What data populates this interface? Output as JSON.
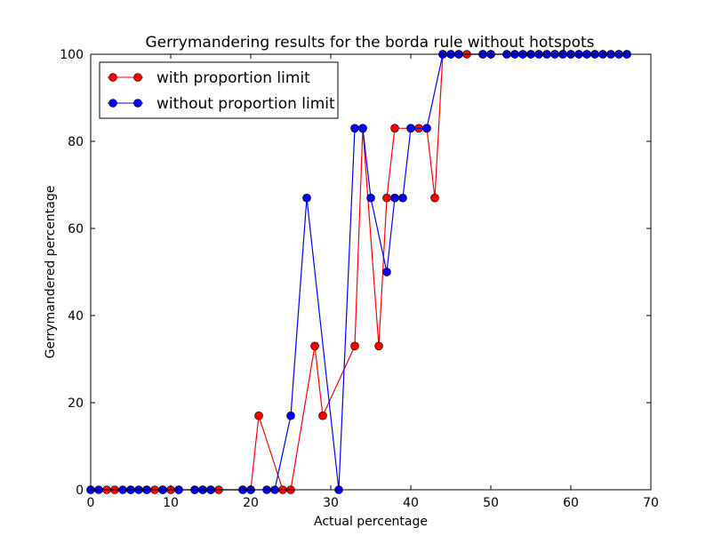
{
  "chart_data": {
    "type": "line",
    "title": "Gerrymandering results for the borda rule without hotspots",
    "xlabel": "Actual percentage",
    "ylabel": "Gerrymandered percentage",
    "xlim": [
      0,
      70
    ],
    "ylim": [
      0,
      100
    ],
    "xticks": [
      0,
      10,
      20,
      30,
      40,
      50,
      60,
      70
    ],
    "yticks": [
      0,
      20,
      40,
      60,
      80,
      100
    ],
    "legend_position": "top-left",
    "grid": false,
    "series": [
      {
        "name": "with proportion limit",
        "color": "#ff0000",
        "x": [
          0,
          2,
          3,
          5,
          7,
          8,
          9,
          10,
          11,
          13,
          14,
          15,
          16,
          19,
          20,
          21,
          24,
          25,
          28,
          29,
          33,
          34,
          36,
          37,
          38,
          40,
          41,
          42,
          43,
          44,
          45,
          46,
          47,
          49,
          50,
          52,
          53,
          54,
          55,
          56,
          57,
          58,
          59,
          60,
          61,
          62,
          63,
          64,
          65,
          66,
          67
        ],
        "y": [
          0,
          0,
          0,
          0,
          0,
          0,
          0,
          0,
          0,
          0,
          0,
          0,
          0,
          0,
          0,
          17,
          0,
          0,
          33,
          17,
          33,
          83,
          33,
          67,
          83,
          83,
          83,
          83,
          67,
          100,
          100,
          100,
          100,
          100,
          100,
          100,
          100,
          100,
          100,
          100,
          100,
          100,
          100,
          100,
          100,
          100,
          100,
          100,
          100,
          100,
          100
        ]
      },
      {
        "name": "without proportion limit",
        "color": "#0000ff",
        "x": [
          0,
          1,
          4,
          5,
          6,
          7,
          9,
          11,
          13,
          14,
          15,
          19,
          20,
          22,
          23,
          25,
          27,
          31,
          33,
          34,
          35,
          37,
          38,
          39,
          40,
          42,
          44,
          45,
          46,
          49,
          50,
          52,
          53,
          54,
          55,
          56,
          57,
          58,
          59,
          60,
          61,
          62,
          63,
          64,
          65,
          66,
          67
        ],
        "y": [
          0,
          0,
          0,
          0,
          0,
          0,
          0,
          0,
          0,
          0,
          0,
          0,
          0,
          0,
          0,
          17,
          67,
          0,
          83,
          83,
          67,
          50,
          67,
          67,
          83,
          83,
          100,
          100,
          100,
          100,
          100,
          100,
          100,
          100,
          100,
          100,
          100,
          100,
          100,
          100,
          100,
          100,
          100,
          100,
          100,
          100,
          100
        ]
      }
    ]
  }
}
